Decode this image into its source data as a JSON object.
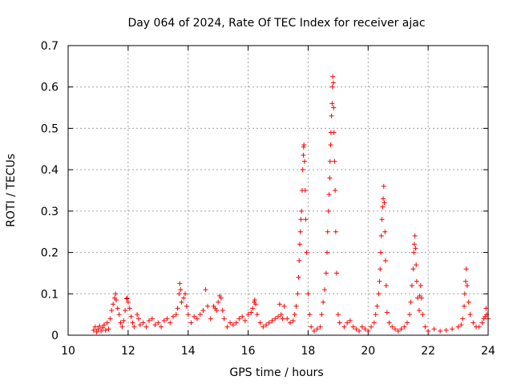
{
  "chart_data": {
    "type": "scatter",
    "title": "Day 064 of 2024, Rate Of TEC Index for receiver ajac",
    "xlabel": "GPS time / hours",
    "ylabel": "ROTI / TECUs",
    "xlim": [
      10,
      24
    ],
    "ylim": [
      0,
      0.7
    ],
    "xticks": [
      10,
      12,
      14,
      16,
      18,
      20,
      22,
      24
    ],
    "yticks": [
      0,
      0.1,
      0.2,
      0.3,
      0.4,
      0.5,
      0.6,
      0.7
    ],
    "xtick_labels": [
      "10",
      "12",
      "14",
      "16",
      "18",
      "20",
      "22",
      "24"
    ],
    "ytick_labels": [
      "0",
      "0.1",
      "0.2",
      "0.3",
      "0.4",
      "0.5",
      "0.6",
      "0.7"
    ],
    "grid": true,
    "marker": "+",
    "color": "#ff0000",
    "series": [
      {
        "name": "",
        "points": [
          [
            10.85,
            0.012
          ],
          [
            10.9,
            0.02
          ],
          [
            10.95,
            0.008
          ],
          [
            11.0,
            0.015
          ],
          [
            11.05,
            0.022
          ],
          [
            11.1,
            0.01
          ],
          [
            11.15,
            0.018
          ],
          [
            11.2,
            0.025
          ],
          [
            11.25,
            0.012
          ],
          [
            11.3,
            0.03
          ],
          [
            11.35,
            0.015
          ],
          [
            11.4,
            0.04
          ],
          [
            11.45,
            0.06
          ],
          [
            11.5,
            0.075
          ],
          [
            11.55,
            0.09
          ],
          [
            11.58,
            0.1
          ],
          [
            11.6,
            0.085
          ],
          [
            11.65,
            0.065
          ],
          [
            11.7,
            0.05
          ],
          [
            11.75,
            0.03
          ],
          [
            11.8,
            0.02
          ],
          [
            11.85,
            0.035
          ],
          [
            11.9,
            0.06
          ],
          [
            11.95,
            0.088
          ],
          [
            11.97,
            0.09
          ],
          [
            12.0,
            0.08
          ],
          [
            12.05,
            0.065
          ],
          [
            12.1,
            0.045
          ],
          [
            12.15,
            0.03
          ],
          [
            12.2,
            0.02
          ],
          [
            12.3,
            0.05
          ],
          [
            12.35,
            0.04
          ],
          [
            12.4,
            0.025
          ],
          [
            12.5,
            0.03
          ],
          [
            12.6,
            0.02
          ],
          [
            12.7,
            0.035
          ],
          [
            12.8,
            0.04
          ],
          [
            12.9,
            0.025
          ],
          [
            13.0,
            0.03
          ],
          [
            13.1,
            0.02
          ],
          [
            13.2,
            0.035
          ],
          [
            13.3,
            0.04
          ],
          [
            13.4,
            0.03
          ],
          [
            13.5,
            0.045
          ],
          [
            13.6,
            0.05
          ],
          [
            13.65,
            0.065
          ],
          [
            13.7,
            0.1
          ],
          [
            13.72,
            0.125
          ],
          [
            13.75,
            0.11
          ],
          [
            13.78,
            0.08
          ],
          [
            13.85,
            0.09
          ],
          [
            13.9,
            0.1
          ],
          [
            13.95,
            0.07
          ],
          [
            14.0,
            0.05
          ],
          [
            14.1,
            0.03
          ],
          [
            14.2,
            0.045
          ],
          [
            14.3,
            0.04
          ],
          [
            14.4,
            0.05
          ],
          [
            14.5,
            0.06
          ],
          [
            14.58,
            0.11
          ],
          [
            14.65,
            0.07
          ],
          [
            14.75,
            0.04
          ],
          [
            14.85,
            0.07
          ],
          [
            14.9,
            0.065
          ],
          [
            14.95,
            0.06
          ],
          [
            15.0,
            0.08
          ],
          [
            15.05,
            0.095
          ],
          [
            15.1,
            0.09
          ],
          [
            15.15,
            0.06
          ],
          [
            15.2,
            0.04
          ],
          [
            15.3,
            0.02
          ],
          [
            15.4,
            0.03
          ],
          [
            15.5,
            0.025
          ],
          [
            15.6,
            0.03
          ],
          [
            15.7,
            0.04
          ],
          [
            15.8,
            0.045
          ],
          [
            15.9,
            0.035
          ],
          [
            16.0,
            0.05
          ],
          [
            16.1,
            0.055
          ],
          [
            16.15,
            0.065
          ],
          [
            16.2,
            0.08
          ],
          [
            16.22,
            0.085
          ],
          [
            16.25,
            0.075
          ],
          [
            16.3,
            0.05
          ],
          [
            16.4,
            0.03
          ],
          [
            16.5,
            0.02
          ],
          [
            16.6,
            0.025
          ],
          [
            16.7,
            0.03
          ],
          [
            16.8,
            0.035
          ],
          [
            16.9,
            0.04
          ],
          [
            17.0,
            0.045
          ],
          [
            17.05,
            0.075
          ],
          [
            17.1,
            0.05
          ],
          [
            17.15,
            0.04
          ],
          [
            17.2,
            0.07
          ],
          [
            17.3,
            0.04
          ],
          [
            17.4,
            0.03
          ],
          [
            17.5,
            0.035
          ],
          [
            17.55,
            0.05
          ],
          [
            17.6,
            0.07
          ],
          [
            17.65,
            0.1
          ],
          [
            17.68,
            0.14
          ],
          [
            17.7,
            0.18
          ],
          [
            17.72,
            0.22
          ],
          [
            17.74,
            0.25
          ],
          [
            17.76,
            0.28
          ],
          [
            17.78,
            0.3
          ],
          [
            17.8,
            0.35
          ],
          [
            17.82,
            0.4
          ],
          [
            17.84,
            0.435
          ],
          [
            17.85,
            0.455
          ],
          [
            17.86,
            0.46
          ],
          [
            17.88,
            0.42
          ],
          [
            17.9,
            0.35
          ],
          [
            17.92,
            0.28
          ],
          [
            17.95,
            0.2
          ],
          [
            18.0,
            0.1
          ],
          [
            18.05,
            0.05
          ],
          [
            18.1,
            0.02
          ],
          [
            18.2,
            0.01
          ],
          [
            18.3,
            0.015
          ],
          [
            18.4,
            0.02
          ],
          [
            18.45,
            0.05
          ],
          [
            18.5,
            0.08
          ],
          [
            18.55,
            0.11
          ],
          [
            18.6,
            0.15
          ],
          [
            18.63,
            0.2
          ],
          [
            18.65,
            0.25
          ],
          [
            18.68,
            0.3
          ],
          [
            18.7,
            0.34
          ],
          [
            18.72,
            0.38
          ],
          [
            18.73,
            0.42
          ],
          [
            18.75,
            0.46
          ],
          [
            18.76,
            0.49
          ],
          [
            18.78,
            0.53
          ],
          [
            18.8,
            0.56
          ],
          [
            18.81,
            0.6
          ],
          [
            18.82,
            0.625
          ],
          [
            18.84,
            0.61
          ],
          [
            18.85,
            0.55
          ],
          [
            18.86,
            0.49
          ],
          [
            18.88,
            0.42
          ],
          [
            18.9,
            0.35
          ],
          [
            18.92,
            0.25
          ],
          [
            18.95,
            0.15
          ],
          [
            19.0,
            0.05
          ],
          [
            19.05,
            0.03
          ],
          [
            19.2,
            0.02
          ],
          [
            19.3,
            0.03
          ],
          [
            19.4,
            0.035
          ],
          [
            19.5,
            0.02
          ],
          [
            19.6,
            0.015
          ],
          [
            19.7,
            0.01
          ],
          [
            19.8,
            0.02
          ],
          [
            19.9,
            0.015
          ],
          [
            20.0,
            0.01
          ],
          [
            20.1,
            0.02
          ],
          [
            20.2,
            0.03
          ],
          [
            20.25,
            0.05
          ],
          [
            20.3,
            0.07
          ],
          [
            20.35,
            0.1
          ],
          [
            20.38,
            0.13
          ],
          [
            20.4,
            0.16
          ],
          [
            20.42,
            0.2
          ],
          [
            20.44,
            0.24
          ],
          [
            20.46,
            0.28
          ],
          [
            20.48,
            0.31
          ],
          [
            20.5,
            0.33
          ],
          [
            20.52,
            0.36
          ],
          [
            20.54,
            0.32
          ],
          [
            20.56,
            0.25
          ],
          [
            20.58,
            0.18
          ],
          [
            20.6,
            0.12
          ],
          [
            20.63,
            0.055
          ],
          [
            20.7,
            0.03
          ],
          [
            20.8,
            0.02
          ],
          [
            20.9,
            0.015
          ],
          [
            21.0,
            0.01
          ],
          [
            21.1,
            0.015
          ],
          [
            21.2,
            0.02
          ],
          [
            21.3,
            0.03
          ],
          [
            21.38,
            0.05
          ],
          [
            21.42,
            0.08
          ],
          [
            21.46,
            0.12
          ],
          [
            21.5,
            0.16
          ],
          [
            21.52,
            0.2
          ],
          [
            21.54,
            0.22
          ],
          [
            21.56,
            0.24
          ],
          [
            21.58,
            0.21
          ],
          [
            21.6,
            0.17
          ],
          [
            21.62,
            0.13
          ],
          [
            21.65,
            0.09
          ],
          [
            21.7,
            0.06
          ],
          [
            21.72,
            0.095
          ],
          [
            21.75,
            0.12
          ],
          [
            21.78,
            0.09
          ],
          [
            21.82,
            0.05
          ],
          [
            21.9,
            0.02
          ],
          [
            22.0,
            0.01
          ],
          [
            22.2,
            0.015
          ],
          [
            22.4,
            0.01
          ],
          [
            22.6,
            0.012
          ],
          [
            22.8,
            0.015
          ],
          [
            23.0,
            0.02
          ],
          [
            23.1,
            0.025
          ],
          [
            23.15,
            0.04
          ],
          [
            23.2,
            0.07
          ],
          [
            23.22,
            0.1
          ],
          [
            23.25,
            0.13
          ],
          [
            23.27,
            0.16
          ],
          [
            23.3,
            0.12
          ],
          [
            23.35,
            0.08
          ],
          [
            23.4,
            0.05
          ],
          [
            23.5,
            0.03
          ],
          [
            23.6,
            0.02
          ],
          [
            23.7,
            0.02
          ],
          [
            23.8,
            0.03
          ],
          [
            23.85,
            0.04
          ],
          [
            23.9,
            0.045
          ],
          [
            23.93,
            0.065
          ],
          [
            23.95,
            0.05
          ],
          [
            24.0,
            0.04
          ]
        ]
      }
    ]
  }
}
